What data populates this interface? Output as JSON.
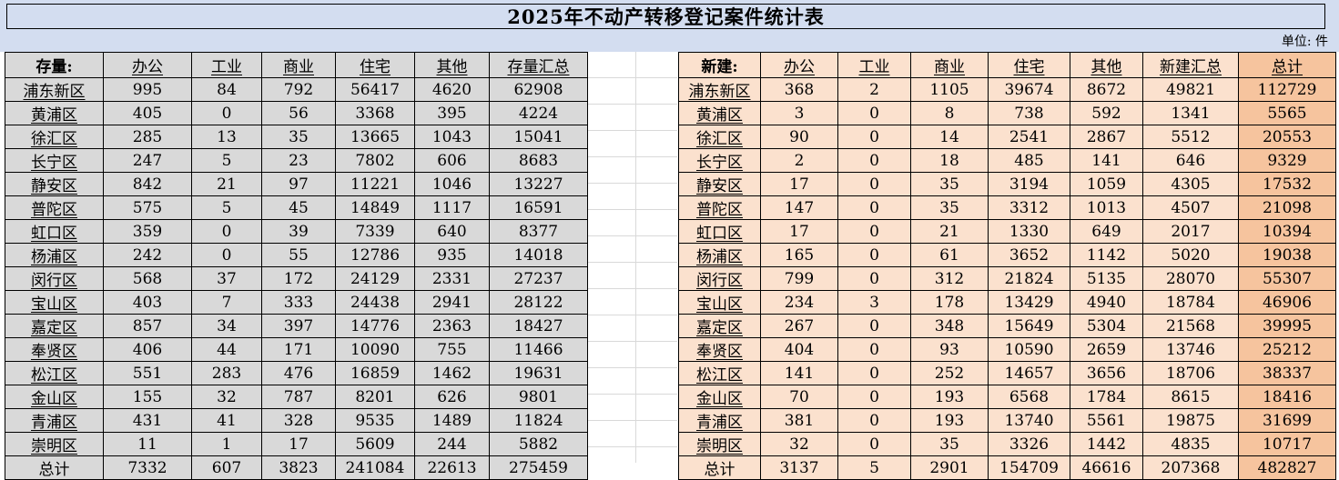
{
  "title": "2025年不动产转移登记案件统计表",
  "unit_label": "单位: 件",
  "colors": {
    "band_blue": "#d3ddf0",
    "left_table_gray": "#d9d9d9",
    "right_table_peach": "#fbe1ce",
    "grand_total_orange": "#f6c49e",
    "border": "#000000"
  },
  "left_table": {
    "headers": [
      "存量:",
      "办公",
      "工业",
      "商业",
      "住宅",
      "其他",
      "存量汇总"
    ],
    "rows": [
      [
        "浦东新区",
        "995",
        "84",
        "792",
        "56417",
        "4620",
        "62908"
      ],
      [
        "黄浦区",
        "405",
        "0",
        "56",
        "3368",
        "395",
        "4224"
      ],
      [
        "徐汇区",
        "285",
        "13",
        "35",
        "13665",
        "1043",
        "15041"
      ],
      [
        "长宁区",
        "247",
        "5",
        "23",
        "7802",
        "606",
        "8683"
      ],
      [
        "静安区",
        "842",
        "21",
        "97",
        "11221",
        "1046",
        "13227"
      ],
      [
        "普陀区",
        "575",
        "5",
        "45",
        "14849",
        "1117",
        "16591"
      ],
      [
        "虹口区",
        "359",
        "0",
        "39",
        "7339",
        "640",
        "8377"
      ],
      [
        "杨浦区",
        "242",
        "0",
        "55",
        "12786",
        "935",
        "14018"
      ],
      [
        "闵行区",
        "568",
        "37",
        "172",
        "24129",
        "2331",
        "27237"
      ],
      [
        "宝山区",
        "403",
        "7",
        "333",
        "24438",
        "2941",
        "28122"
      ],
      [
        "嘉定区",
        "857",
        "34",
        "397",
        "14776",
        "2363",
        "18427"
      ],
      [
        "奉贤区",
        "406",
        "44",
        "171",
        "10090",
        "755",
        "11466"
      ],
      [
        "松江区",
        "551",
        "283",
        "476",
        "16859",
        "1462",
        "19631"
      ],
      [
        "金山区",
        "155",
        "32",
        "787",
        "8201",
        "626",
        "9801"
      ],
      [
        "青浦区",
        "431",
        "41",
        "328",
        "9535",
        "1489",
        "11824"
      ],
      [
        "崇明区",
        "11",
        "1",
        "17",
        "5609",
        "244",
        "5882"
      ]
    ],
    "total_row": [
      "总计",
      "7332",
      "607",
      "3823",
      "241084",
      "22613",
      "275459"
    ]
  },
  "right_table": {
    "headers": [
      "新建:",
      "办公",
      "工业",
      "商业",
      "住宅",
      "其他",
      "新建汇总",
      "总计"
    ],
    "rows": [
      [
        "浦东新区",
        "368",
        "2",
        "1105",
        "39674",
        "8672",
        "49821",
        "112729"
      ],
      [
        "黄浦区",
        "3",
        "0",
        "8",
        "738",
        "592",
        "1341",
        "5565"
      ],
      [
        "徐汇区",
        "90",
        "0",
        "14",
        "2541",
        "2867",
        "5512",
        "20553"
      ],
      [
        "长宁区",
        "2",
        "0",
        "18",
        "485",
        "141",
        "646",
        "9329"
      ],
      [
        "静安区",
        "17",
        "0",
        "35",
        "3194",
        "1059",
        "4305",
        "17532"
      ],
      [
        "普陀区",
        "147",
        "0",
        "35",
        "3312",
        "1013",
        "4507",
        "21098"
      ],
      [
        "虹口区",
        "17",
        "0",
        "21",
        "1330",
        "649",
        "2017",
        "10394"
      ],
      [
        "杨浦区",
        "165",
        "0",
        "61",
        "3652",
        "1142",
        "5020",
        "19038"
      ],
      [
        "闵行区",
        "799",
        "0",
        "312",
        "21824",
        "5135",
        "28070",
        "55307"
      ],
      [
        "宝山区",
        "234",
        "3",
        "178",
        "13429",
        "4940",
        "18784",
        "46906"
      ],
      [
        "嘉定区",
        "267",
        "0",
        "348",
        "15649",
        "5304",
        "21568",
        "39995"
      ],
      [
        "奉贤区",
        "404",
        "0",
        "93",
        "10590",
        "2659",
        "13746",
        "25212"
      ],
      [
        "松江区",
        "141",
        "0",
        "252",
        "14657",
        "3656",
        "18706",
        "38337"
      ],
      [
        "金山区",
        "70",
        "0",
        "193",
        "6568",
        "1784",
        "8615",
        "18416"
      ],
      [
        "青浦区",
        "381",
        "0",
        "193",
        "13740",
        "5561",
        "19875",
        "31699"
      ],
      [
        "崇明区",
        "32",
        "0",
        "35",
        "3326",
        "1442",
        "4835",
        "10717"
      ]
    ],
    "total_row": [
      "总计",
      "3137",
      "5",
      "2901",
      "154709",
      "46616",
      "207368",
      "482827"
    ]
  }
}
